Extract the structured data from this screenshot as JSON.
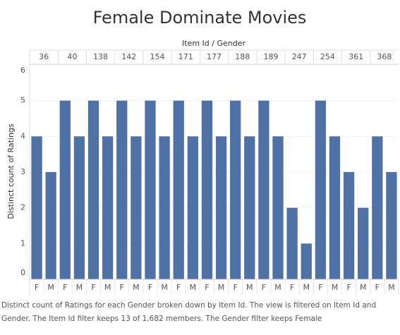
{
  "chart_data": {
    "type": "bar",
    "title": "Female Dominate Movies",
    "column_header": "Item Id / Gender",
    "y_label": "Distinct count of Ratings",
    "caption": "Distinct count of Ratings for each Gender broken down by Item Id. The view is filtered on Item Id and Gender. The Item Id filter keeps 13 of 1,682 members. The Gender filter keeps Female",
    "color": "#4e72a5",
    "ylim": [
      0,
      6
    ],
    "yticks": [
      0,
      1,
      2,
      3,
      4,
      5,
      6
    ],
    "grid": true,
    "groups": [
      {
        "name": "36",
        "categories": [
          "F",
          "M"
        ],
        "values": [
          4,
          3
        ]
      },
      {
        "name": "40",
        "categories": [
          "F",
          "M"
        ],
        "values": [
          5,
          4
        ]
      },
      {
        "name": "138",
        "categories": [
          "F",
          "M"
        ],
        "values": [
          5,
          4
        ]
      },
      {
        "name": "142",
        "categories": [
          "F",
          "M"
        ],
        "values": [
          5,
          4
        ]
      },
      {
        "name": "154",
        "categories": [
          "F",
          "M"
        ],
        "values": [
          5,
          4
        ]
      },
      {
        "name": "171",
        "categories": [
          "F",
          "M"
        ],
        "values": [
          5,
          4
        ]
      },
      {
        "name": "177",
        "categories": [
          "F",
          "M"
        ],
        "values": [
          5,
          4
        ]
      },
      {
        "name": "188",
        "categories": [
          "F",
          "M"
        ],
        "values": [
          5,
          4
        ]
      },
      {
        "name": "189",
        "categories": [
          "F",
          "M"
        ],
        "values": [
          5,
          4
        ]
      },
      {
        "name": "247",
        "categories": [
          "F",
          "M"
        ],
        "values": [
          2,
          1
        ]
      },
      {
        "name": "254",
        "categories": [
          "F",
          "M"
        ],
        "values": [
          5,
          4
        ]
      },
      {
        "name": "361",
        "categories": [
          "F",
          "M"
        ],
        "values": [
          3,
          2
        ]
      },
      {
        "name": "368",
        "categories": [
          "F",
          "M"
        ],
        "values": [
          4,
          3
        ]
      }
    ]
  }
}
